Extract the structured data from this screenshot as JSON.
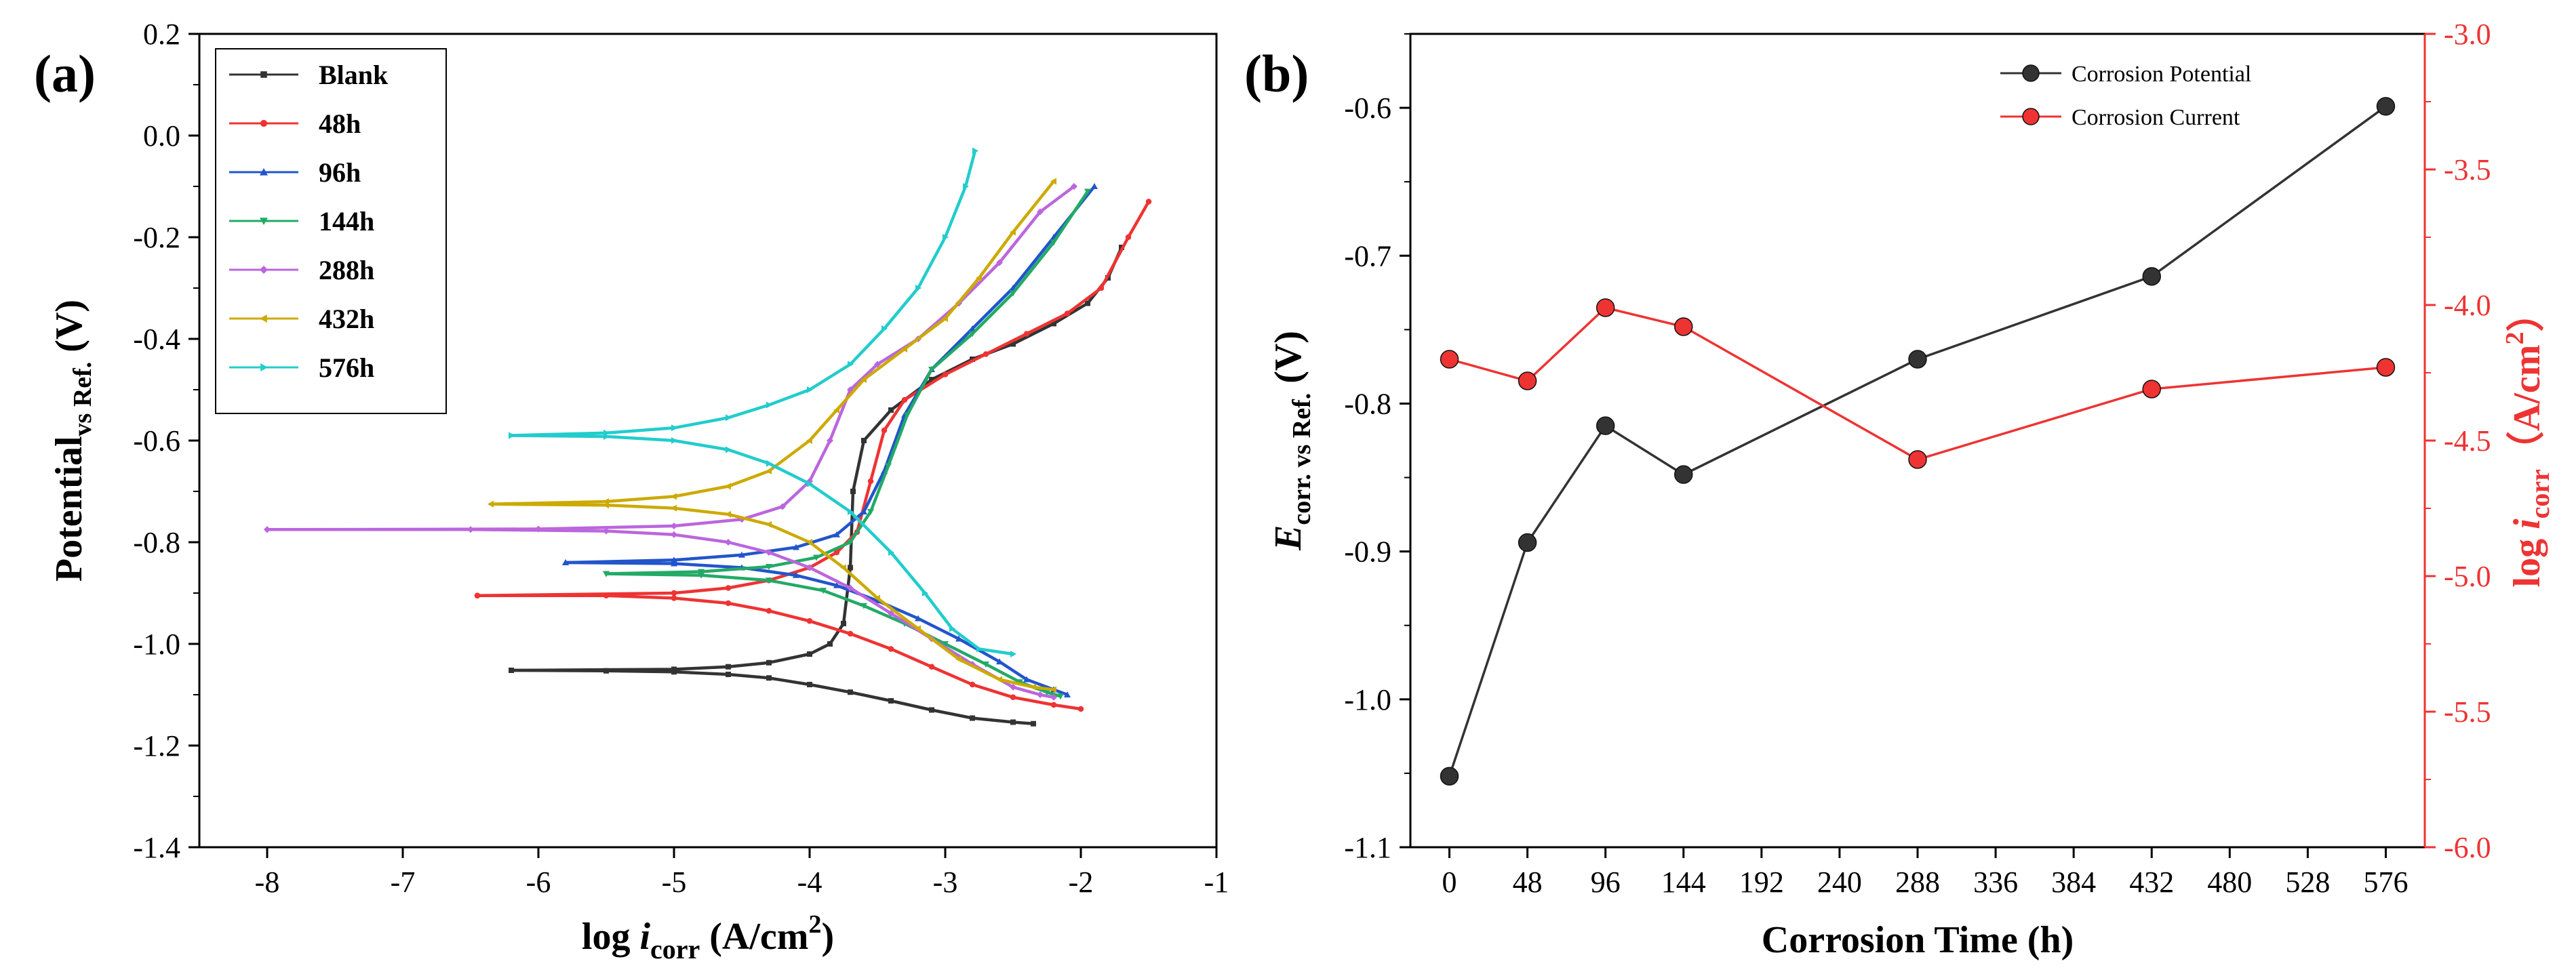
{
  "chart_data": [
    {
      "type": "line",
      "panel_label": "(a)",
      "xlabel": "log i_corr (A/cm²)",
      "xlabel_parts": {
        "pre": "log ",
        "italic": "i",
        "sub": "corr",
        "post": " (A/cm",
        "sup": "2",
        "close": ")"
      },
      "ylabel": "Potential vs Ref. (V)",
      "ylabel_parts": {
        "main": "Potential",
        "sub": "vs Ref.",
        "post": " (V)"
      },
      "xlim": [
        -8.5,
        -1
      ],
      "ylim": [
        -1.4,
        0.2
      ],
      "xticks": [
        -8,
        -7,
        -6,
        -5,
        -4,
        -3,
        -2,
        -1
      ],
      "xtick_labels": [
        "-8",
        "-7",
        "-6",
        "-5",
        "-4",
        "-3",
        "-2",
        "-1"
      ],
      "yticks": [
        0.2,
        0.0,
        -0.2,
        -0.4,
        -0.6,
        -0.8,
        -1.0,
        -1.2,
        -1.4
      ],
      "ytick_labels": [
        "0.2",
        "0.0",
        "-0.2",
        "-0.4",
        "-0.6",
        "-0.8",
        "-1.0",
        "-1.2",
        "-1.4"
      ],
      "legend_position": "top-left",
      "series": [
        {
          "name": "Blank",
          "color": "#333333",
          "marker": "square",
          "ecorr": -1.052,
          "cathodic": [
            [
              -6.2,
              -1.052
            ],
            [
              -5.5,
              -1.053
            ],
            [
              -5.0,
              -1.055
            ],
            [
              -4.6,
              -1.06
            ],
            [
              -4.3,
              -1.067
            ],
            [
              -4.0,
              -1.08
            ],
            [
              -3.7,
              -1.095
            ],
            [
              -3.4,
              -1.112
            ],
            [
              -3.1,
              -1.13
            ],
            [
              -2.8,
              -1.146
            ],
            [
              -2.5,
              -1.154
            ],
            [
              -2.35,
              -1.157
            ]
          ],
          "anodic": [
            [
              -6.2,
              -1.052
            ],
            [
              -5.0,
              -1.05
            ],
            [
              -4.6,
              -1.045
            ],
            [
              -4.3,
              -1.037
            ],
            [
              -4.0,
              -1.02
            ],
            [
              -3.85,
              -1.0
            ],
            [
              -3.75,
              -0.96
            ],
            [
              -3.7,
              -0.85
            ],
            [
              -3.68,
              -0.7
            ],
            [
              -3.6,
              -0.6
            ],
            [
              -3.4,
              -0.54
            ],
            [
              -3.1,
              -0.48
            ],
            [
              -2.8,
              -0.44
            ],
            [
              -2.5,
              -0.41
            ],
            [
              -2.2,
              -0.37
            ],
            [
              -1.95,
              -0.33
            ],
            [
              -1.8,
              -0.28
            ],
            [
              -1.7,
              -0.22
            ]
          ]
        },
        {
          "name": "48h",
          "color": "#ee3333",
          "marker": "circle",
          "ecorr": -0.905,
          "cathodic": [
            [
              -6.45,
              -0.905
            ],
            [
              -5.5,
              -0.905
            ],
            [
              -5.0,
              -0.91
            ],
            [
              -4.6,
              -0.92
            ],
            [
              -4.3,
              -0.935
            ],
            [
              -4.0,
              -0.955
            ],
            [
              -3.7,
              -0.98
            ],
            [
              -3.4,
              -1.01
            ],
            [
              -3.1,
              -1.045
            ],
            [
              -2.8,
              -1.08
            ],
            [
              -2.5,
              -1.105
            ],
            [
              -2.2,
              -1.12
            ],
            [
              -2.0,
              -1.128
            ]
          ],
          "anodic": [
            [
              -6.45,
              -0.905
            ],
            [
              -5.0,
              -0.9
            ],
            [
              -4.6,
              -0.89
            ],
            [
              -4.3,
              -0.875
            ],
            [
              -4.0,
              -0.85
            ],
            [
              -3.8,
              -0.82
            ],
            [
              -3.65,
              -0.78
            ],
            [
              -3.55,
              -0.68
            ],
            [
              -3.45,
              -0.58
            ],
            [
              -3.3,
              -0.52
            ],
            [
              -3.0,
              -0.47
            ],
            [
              -2.7,
              -0.43
            ],
            [
              -2.4,
              -0.39
            ],
            [
              -2.1,
              -0.35
            ],
            [
              -1.85,
              -0.3
            ],
            [
              -1.65,
              -0.2
            ],
            [
              -1.5,
              -0.13
            ]
          ]
        },
        {
          "name": "96h",
          "color": "#2255cc",
          "marker": "triangle-up",
          "ecorr": -0.84,
          "cathodic": [
            [
              -5.8,
              -0.84
            ],
            [
              -5.0,
              -0.842
            ],
            [
              -4.5,
              -0.85
            ],
            [
              -4.1,
              -0.865
            ],
            [
              -3.8,
              -0.885
            ],
            [
              -3.5,
              -0.915
            ],
            [
              -3.2,
              -0.95
            ],
            [
              -2.9,
              -0.99
            ],
            [
              -2.6,
              -1.035
            ],
            [
              -2.4,
              -1.07
            ],
            [
              -2.2,
              -1.09
            ],
            [
              -2.1,
              -1.1
            ]
          ],
          "anodic": [
            [
              -5.8,
              -0.84
            ],
            [
              -5.0,
              -0.835
            ],
            [
              -4.5,
              -0.825
            ],
            [
              -4.1,
              -0.81
            ],
            [
              -3.8,
              -0.785
            ],
            [
              -3.6,
              -0.74
            ],
            [
              -3.45,
              -0.66
            ],
            [
              -3.3,
              -0.55
            ],
            [
              -3.1,
              -0.46
            ],
            [
              -2.8,
              -0.38
            ],
            [
              -2.5,
              -0.3
            ],
            [
              -2.2,
              -0.2
            ],
            [
              -1.9,
              -0.1
            ]
          ]
        },
        {
          "name": "144h",
          "color": "#22aa66",
          "marker": "triangle-down",
          "ecorr": -0.862,
          "cathodic": [
            [
              -5.5,
              -0.862
            ],
            [
              -4.8,
              -0.865
            ],
            [
              -4.3,
              -0.875
            ],
            [
              -3.9,
              -0.895
            ],
            [
              -3.6,
              -0.925
            ],
            [
              -3.3,
              -0.96
            ],
            [
              -3.0,
              -1.0
            ],
            [
              -2.7,
              -1.04
            ],
            [
              -2.45,
              -1.075
            ],
            [
              -2.25,
              -1.095
            ],
            [
              -2.15,
              -1.103
            ]
          ],
          "anodic": [
            [
              -5.5,
              -0.862
            ],
            [
              -4.8,
              -0.858
            ],
            [
              -4.3,
              -0.848
            ],
            [
              -3.95,
              -0.83
            ],
            [
              -3.7,
              -0.8
            ],
            [
              -3.55,
              -0.74
            ],
            [
              -3.42,
              -0.65
            ],
            [
              -3.28,
              -0.55
            ],
            [
              -3.1,
              -0.46
            ],
            [
              -2.8,
              -0.39
            ],
            [
              -2.5,
              -0.31
            ],
            [
              -2.2,
              -0.21
            ],
            [
              -1.95,
              -0.11
            ]
          ]
        },
        {
          "name": "288h",
          "color": "#bb66dd",
          "marker": "diamond",
          "ecorr": -0.775,
          "cathodic": [
            [
              -8.0,
              -0.775
            ],
            [
              -6.5,
              -0.775
            ],
            [
              -5.5,
              -0.778
            ],
            [
              -5.0,
              -0.785
            ],
            [
              -4.6,
              -0.8
            ],
            [
              -4.3,
              -0.82
            ],
            [
              -4.0,
              -0.85
            ],
            [
              -3.7,
              -0.89
            ],
            [
              -3.4,
              -0.94
            ],
            [
              -3.1,
              -0.99
            ],
            [
              -2.8,
              -1.04
            ],
            [
              -2.5,
              -1.085
            ],
            [
              -2.3,
              -1.1
            ],
            [
              -2.2,
              -1.105
            ]
          ],
          "anodic": [
            [
              -8.0,
              -0.775
            ],
            [
              -6.0,
              -0.774
            ],
            [
              -5.0,
              -0.768
            ],
            [
              -4.5,
              -0.755
            ],
            [
              -4.2,
              -0.73
            ],
            [
              -4.0,
              -0.68
            ],
            [
              -3.85,
              -0.6
            ],
            [
              -3.7,
              -0.5
            ],
            [
              -3.5,
              -0.45
            ],
            [
              -3.2,
              -0.4
            ],
            [
              -2.9,
              -0.33
            ],
            [
              -2.6,
              -0.25
            ],
            [
              -2.3,
              -0.15
            ],
            [
              -2.05,
              -0.1
            ]
          ]
        },
        {
          "name": "432h",
          "color": "#ccaa00",
          "marker": "triangle-left",
          "ecorr": -0.725,
          "cathodic": [
            [
              -6.35,
              -0.725
            ],
            [
              -5.5,
              -0.727
            ],
            [
              -5.0,
              -0.733
            ],
            [
              -4.6,
              -0.745
            ],
            [
              -4.3,
              -0.765
            ],
            [
              -4.0,
              -0.8
            ],
            [
              -3.75,
              -0.85
            ],
            [
              -3.5,
              -0.91
            ],
            [
              -3.2,
              -0.97
            ],
            [
              -2.9,
              -1.03
            ],
            [
              -2.6,
              -1.07
            ],
            [
              -2.35,
              -1.085
            ],
            [
              -2.2,
              -1.09
            ]
          ],
          "anodic": [
            [
              -6.35,
              -0.725
            ],
            [
              -5.5,
              -0.72
            ],
            [
              -5.0,
              -0.71
            ],
            [
              -4.6,
              -0.69
            ],
            [
              -4.3,
              -0.66
            ],
            [
              -4.0,
              -0.6
            ],
            [
              -3.8,
              -0.54
            ],
            [
              -3.6,
              -0.48
            ],
            [
              -3.3,
              -0.42
            ],
            [
              -3.0,
              -0.36
            ],
            [
              -2.75,
              -0.28
            ],
            [
              -2.5,
              -0.19
            ],
            [
              -2.2,
              -0.09
            ]
          ]
        },
        {
          "name": "576h",
          "color": "#22cccc",
          "marker": "triangle-right",
          "ecorr": -0.59,
          "cathodic": [
            [
              -6.2,
              -0.59
            ],
            [
              -5.5,
              -0.592
            ],
            [
              -5.0,
              -0.6
            ],
            [
              -4.6,
              -0.618
            ],
            [
              -4.3,
              -0.645
            ],
            [
              -4.0,
              -0.685
            ],
            [
              -3.7,
              -0.74
            ],
            [
              -3.4,
              -0.82
            ],
            [
              -3.15,
              -0.9
            ],
            [
              -2.95,
              -0.97
            ],
            [
              -2.75,
              -1.01
            ],
            [
              -2.5,
              -1.02
            ]
          ],
          "anodic": [
            [
              -6.2,
              -0.59
            ],
            [
              -5.5,
              -0.585
            ],
            [
              -5.0,
              -0.575
            ],
            [
              -4.6,
              -0.555
            ],
            [
              -4.3,
              -0.53
            ],
            [
              -4.0,
              -0.5
            ],
            [
              -3.7,
              -0.45
            ],
            [
              -3.45,
              -0.38
            ],
            [
              -3.2,
              -0.3
            ],
            [
              -3.0,
              -0.2
            ],
            [
              -2.85,
              -0.1
            ],
            [
              -2.78,
              -0.03
            ]
          ]
        }
      ]
    },
    {
      "type": "line",
      "panel_label": "(b)",
      "xlabel": "Corrosion Time (h)",
      "ylabel_left": "E corr. vs Ref. (V)",
      "ylabel_left_parts": {
        "italic": "E",
        "sub": "corr. vs Ref.",
        "post": " (V)"
      },
      "ylabel_right": "log i_corr (A/cm²)",
      "ylabel_right_parts": {
        "pre": "log ",
        "italic": "i",
        "sub": "corr",
        "post": "（A/cm",
        "sup": "2",
        "close": "）"
      },
      "xlim": [
        -24,
        600
      ],
      "ylim_left": [
        -1.1,
        -0.55
      ],
      "ylim_right": [
        -6.0,
        -3.0
      ],
      "x": [
        0,
        48,
        96,
        144,
        288,
        432,
        576
      ],
      "xticks": [
        0,
        48,
        96,
        144,
        192,
        240,
        288,
        336,
        384,
        432,
        480,
        528,
        576
      ],
      "xtick_labels": [
        "0",
        "48",
        "96",
        "144",
        "192",
        "240",
        "288",
        "336",
        "384",
        "432",
        "480",
        "528",
        "576"
      ],
      "yticks_left": [
        -0.6,
        -0.7,
        -0.8,
        -0.9,
        -1.0,
        -1.1
      ],
      "ytick_labels_left": [
        "-0.6",
        "-0.7",
        "-0.8",
        "-0.9",
        "-1.0",
        "-1.1"
      ],
      "yticks_right": [
        -3.0,
        -3.5,
        -4.0,
        -4.5,
        -5.0,
        -5.5,
        -6.0
      ],
      "ytick_labels_right": [
        "-3.0",
        "-3.5",
        "-4.0",
        "-4.5",
        "-5.0",
        "-5.5",
        "-6.0"
      ],
      "legend_position": "top-right",
      "series": [
        {
          "name": "Corrosion Potential",
          "color": "#333333",
          "axis": "left",
          "values": [
            -1.052,
            -0.894,
            -0.815,
            -0.848,
            -0.77,
            -0.714,
            -0.599
          ]
        },
        {
          "name": "Corrosion Current",
          "color": "#ee3333",
          "axis": "right",
          "values": [
            -4.2,
            -4.28,
            -4.01,
            -4.08,
            -4.57,
            -4.31,
            -4.23
          ]
        }
      ]
    }
  ]
}
